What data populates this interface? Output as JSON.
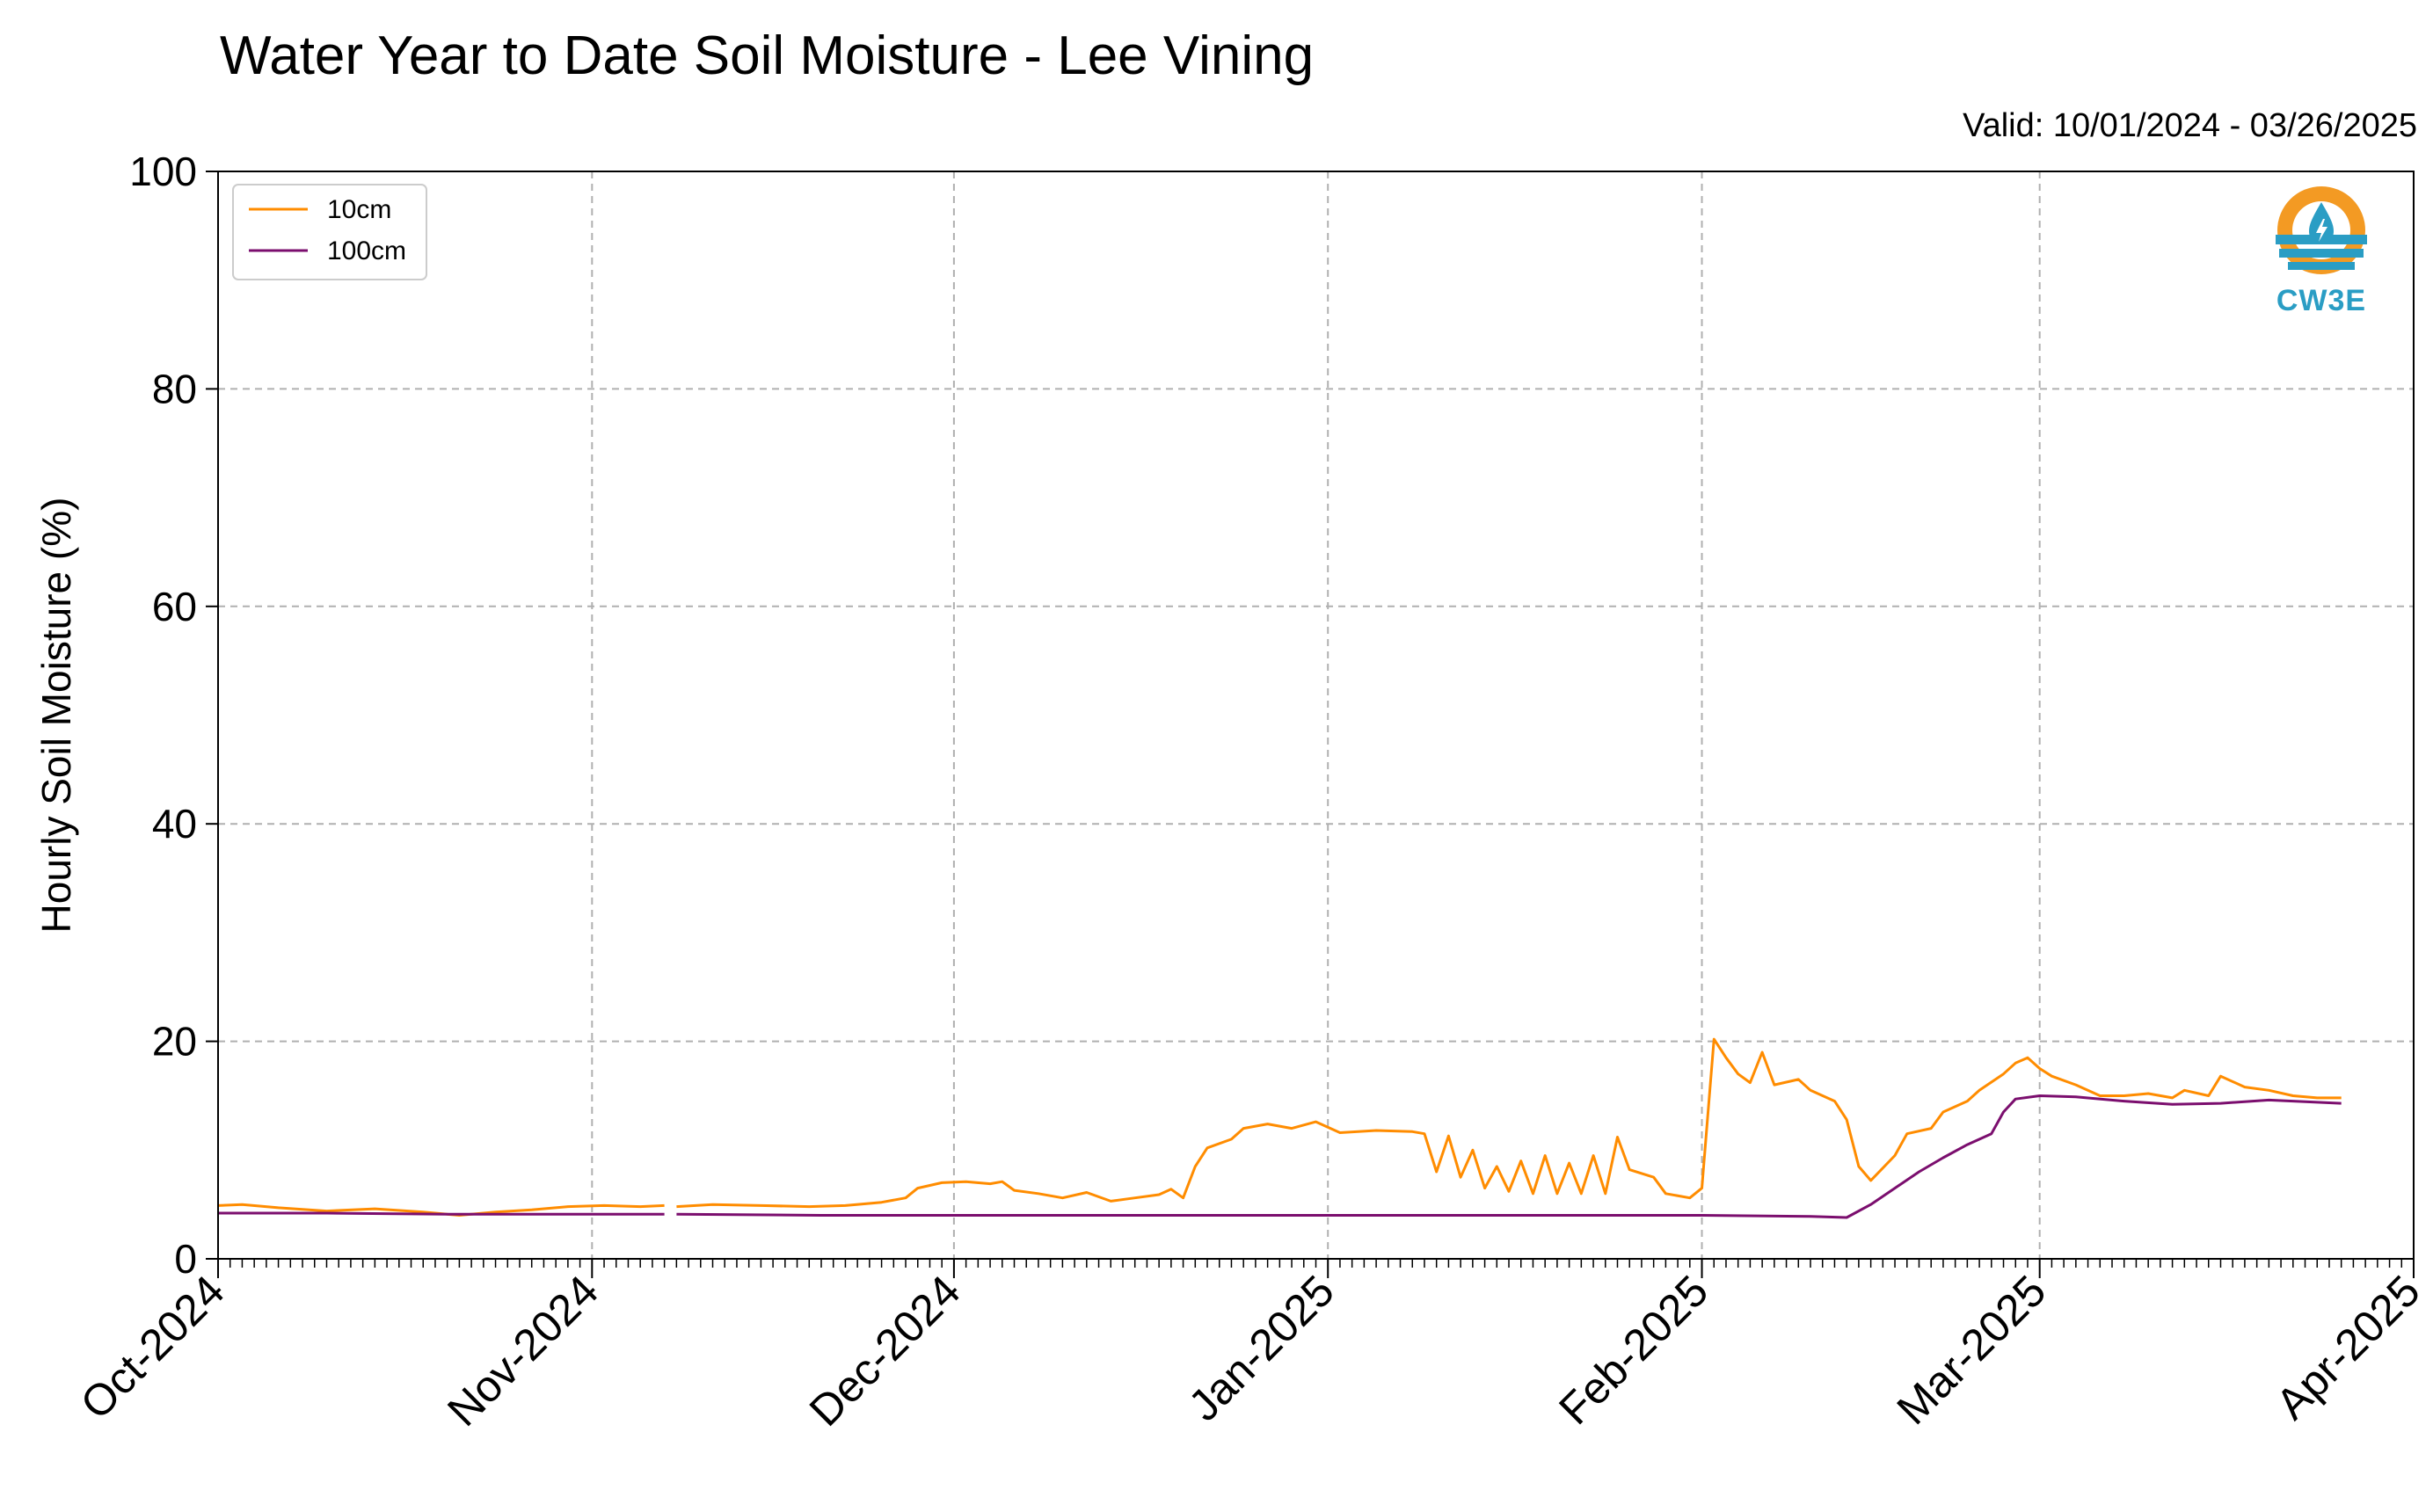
{
  "title": "Water Year to Date Soil Moisture - Lee Vining",
  "valid_text": "Valid: 10/01/2024 - 03/26/2025",
  "logo_text": "CW3E",
  "colors": {
    "series_10cm": "#ff8c00",
    "series_100cm": "#7b0e6e",
    "grid": "#b0b0b0",
    "logo_orange": "#f39a23",
    "logo_blue": "#2a9dc4"
  },
  "chart_data": {
    "type": "line",
    "title": "Water Year to Date Soil Moisture - Lee Vining",
    "ylabel": "Hourly Soil Moisture (%)",
    "xlabel": "",
    "ylim": [
      0,
      100
    ],
    "yticks": [
      0,
      20,
      40,
      60,
      80,
      100
    ],
    "xlim": [
      "2024-10-01",
      "2025-04-01"
    ],
    "xticks": [
      {
        "date": "2024-10-01",
        "label": "Oct-2024"
      },
      {
        "date": "2024-11-01",
        "label": "Nov-2024"
      },
      {
        "date": "2024-12-01",
        "label": "Dec-2024"
      },
      {
        "date": "2025-01-01",
        "label": "Jan-2025"
      },
      {
        "date": "2025-02-01",
        "label": "Feb-2025"
      },
      {
        "date": "2025-03-01",
        "label": "Mar-2025"
      },
      {
        "date": "2025-04-01",
        "label": "Apr-2025"
      }
    ],
    "grid": true,
    "legend_position": "top-left",
    "series": [
      {
        "name": "10cm",
        "color": "#ff8c00",
        "points": [
          [
            "2024-10-01",
            4.9
          ],
          [
            "2024-10-03",
            5.0
          ],
          [
            "2024-10-06",
            4.7
          ],
          [
            "2024-10-10",
            4.4
          ],
          [
            "2024-10-14",
            4.6
          ],
          [
            "2024-10-18",
            4.3
          ],
          [
            "2024-10-21",
            4.0
          ],
          [
            "2024-10-24",
            4.3
          ],
          [
            "2024-10-27",
            4.5
          ],
          [
            "2024-10-30",
            4.8
          ],
          [
            "2024-11-02",
            4.9
          ],
          [
            "2024-11-05",
            4.8
          ],
          [
            "2024-11-07",
            4.9
          ],
          null,
          [
            "2024-11-08",
            4.8
          ],
          [
            "2024-11-11",
            5.0
          ],
          [
            "2024-11-15",
            4.9
          ],
          [
            "2024-11-19",
            4.8
          ],
          [
            "2024-11-22",
            4.9
          ],
          [
            "2024-11-25",
            5.2
          ],
          [
            "2024-11-27",
            5.6
          ],
          [
            "2024-11-28",
            6.5
          ],
          [
            "2024-11-30",
            7.0
          ],
          [
            "2024-12-02",
            7.1
          ],
          [
            "2024-12-04",
            6.9
          ],
          [
            "2024-12-05",
            7.1
          ],
          [
            "2024-12-06",
            6.3
          ],
          [
            "2024-12-08",
            6.0
          ],
          [
            "2024-12-10",
            5.6
          ],
          [
            "2024-12-12",
            6.1
          ],
          [
            "2024-12-14",
            5.3
          ],
          [
            "2024-12-16",
            5.6
          ],
          [
            "2024-12-18",
            5.9
          ],
          [
            "2024-12-19",
            6.4
          ],
          [
            "2024-12-20",
            5.6
          ],
          [
            "2024-12-21",
            8.5
          ],
          [
            "2024-12-22",
            10.2
          ],
          [
            "2024-12-24",
            11.0
          ],
          [
            "2024-12-25",
            12.0
          ],
          [
            "2024-12-27",
            12.4
          ],
          [
            "2024-12-29",
            12.0
          ],
          [
            "2024-12-31",
            12.6
          ],
          [
            "2025-01-02",
            11.6
          ],
          [
            "2025-01-05",
            11.8
          ],
          [
            "2025-01-08",
            11.7
          ],
          [
            "2025-01-09",
            11.5
          ],
          [
            "2025-01-10",
            8.0
          ],
          [
            "2025-01-11",
            11.3
          ],
          [
            "2025-01-12",
            7.5
          ],
          [
            "2025-01-13",
            10.0
          ],
          [
            "2025-01-14",
            6.5
          ],
          [
            "2025-01-15",
            8.5
          ],
          [
            "2025-01-16",
            6.2
          ],
          [
            "2025-01-17",
            9.0
          ],
          [
            "2025-01-18",
            6.0
          ],
          [
            "2025-01-19",
            9.5
          ],
          [
            "2025-01-20",
            6.0
          ],
          [
            "2025-01-21",
            8.8
          ],
          [
            "2025-01-22",
            6.0
          ],
          [
            "2025-01-23",
            9.5
          ],
          [
            "2025-01-24",
            6.0
          ],
          [
            "2025-01-25",
            11.2
          ],
          [
            "2025-01-26",
            8.2
          ],
          [
            "2025-01-28",
            7.5
          ],
          [
            "2025-01-29",
            6.0
          ],
          [
            "2025-01-31",
            5.6
          ],
          [
            "2025-02-01",
            6.5
          ],
          [
            "2025-02-02",
            20.2
          ],
          [
            "2025-02-03",
            18.5
          ],
          [
            "2025-02-04",
            17.0
          ],
          [
            "2025-02-05",
            16.2
          ],
          [
            "2025-02-06",
            19.0
          ],
          [
            "2025-02-07",
            16.0
          ],
          [
            "2025-02-09",
            16.5
          ],
          [
            "2025-02-10",
            15.5
          ],
          [
            "2025-02-12",
            14.5
          ],
          [
            "2025-02-13",
            12.8
          ],
          [
            "2025-02-14",
            8.5
          ],
          [
            "2025-02-15",
            7.2
          ],
          [
            "2025-02-17",
            9.5
          ],
          [
            "2025-02-18",
            11.5
          ],
          [
            "2025-02-20",
            12.0
          ],
          [
            "2025-02-21",
            13.5
          ],
          [
            "2025-02-23",
            14.5
          ],
          [
            "2025-02-24",
            15.5
          ],
          [
            "2025-02-26",
            17.0
          ],
          [
            "2025-02-27",
            18.0
          ],
          [
            "2025-02-28",
            18.5
          ],
          [
            "2025-03-01",
            17.5
          ],
          [
            "2025-03-02",
            16.8
          ],
          [
            "2025-03-04",
            16.0
          ],
          [
            "2025-03-06",
            15.0
          ],
          [
            "2025-03-08",
            15.0
          ],
          [
            "2025-03-10",
            15.2
          ],
          [
            "2025-03-12",
            14.8
          ],
          [
            "2025-03-13",
            15.5
          ],
          [
            "2025-03-15",
            15.0
          ],
          [
            "2025-03-16",
            16.8
          ],
          [
            "2025-03-18",
            15.8
          ],
          [
            "2025-03-20",
            15.5
          ],
          [
            "2025-03-22",
            15.0
          ],
          [
            "2025-03-24",
            14.8
          ],
          [
            "2025-03-26",
            14.8
          ]
        ]
      },
      {
        "name": "100cm",
        "color": "#7b0e6e",
        "points": [
          [
            "2024-10-01",
            4.2
          ],
          [
            "2024-10-10",
            4.2
          ],
          [
            "2024-10-20",
            4.1
          ],
          [
            "2024-10-31",
            4.1
          ],
          [
            "2024-11-07",
            4.1
          ],
          null,
          [
            "2024-11-08",
            4.1
          ],
          [
            "2024-11-20",
            4.0
          ],
          [
            "2024-12-01",
            4.0
          ],
          [
            "2024-12-15",
            4.0
          ],
          [
            "2025-01-01",
            4.0
          ],
          [
            "2025-01-15",
            4.0
          ],
          [
            "2025-02-01",
            4.0
          ],
          [
            "2025-02-10",
            3.9
          ],
          [
            "2025-02-13",
            3.8
          ],
          [
            "2025-02-15",
            5.0
          ],
          [
            "2025-02-17",
            6.5
          ],
          [
            "2025-02-19",
            8.0
          ],
          [
            "2025-02-21",
            9.3
          ],
          [
            "2025-02-23",
            10.5
          ],
          [
            "2025-02-25",
            11.5
          ],
          [
            "2025-02-26",
            13.5
          ],
          [
            "2025-02-27",
            14.7
          ],
          [
            "2025-03-01",
            15.0
          ],
          [
            "2025-03-04",
            14.9
          ],
          [
            "2025-03-08",
            14.5
          ],
          [
            "2025-03-12",
            14.2
          ],
          [
            "2025-03-16",
            14.3
          ],
          [
            "2025-03-20",
            14.6
          ],
          [
            "2025-03-26",
            14.3
          ]
        ]
      }
    ]
  }
}
